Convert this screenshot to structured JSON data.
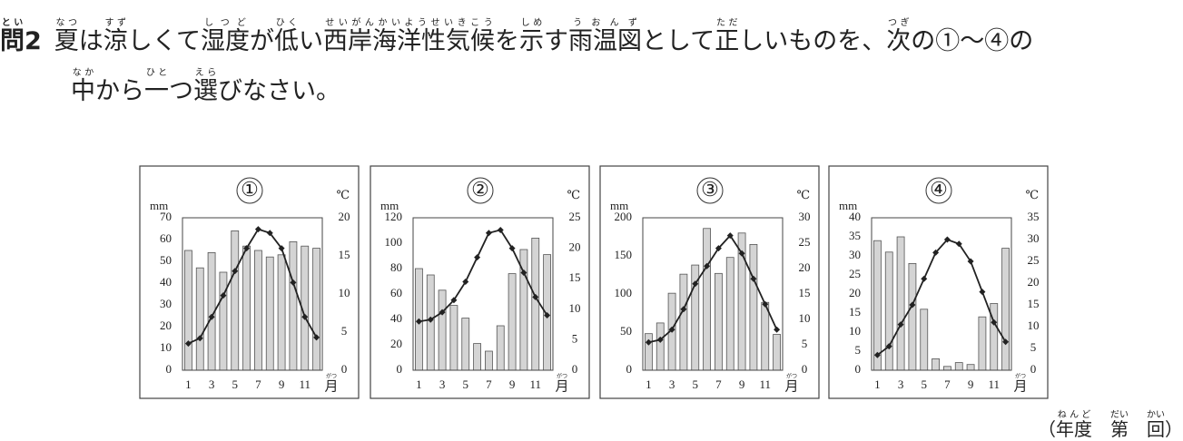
{
  "question": {
    "label": [
      {
        "text": "問",
        "ruby": "とい"
      },
      {
        "text": "2"
      }
    ],
    "lines": [
      [
        {
          "text": "夏",
          "ruby": "なつ"
        },
        {
          "text": "は"
        },
        {
          "text": "涼",
          "ruby": "すず"
        },
        {
          "text": "しくて"
        },
        {
          "text": "湿度",
          "ruby": "しつど"
        },
        {
          "text": "が"
        },
        {
          "text": "低",
          "ruby": "ひく"
        },
        {
          "text": "い"
        },
        {
          "text": "西岸海洋性気候",
          "ruby": "せいがんかいようせいきこう"
        },
        {
          "text": "を"
        },
        {
          "text": "示",
          "ruby": "しめ"
        },
        {
          "text": "す"
        },
        {
          "text": "雨温図",
          "ruby": "うおんず"
        },
        {
          "text": "として"
        },
        {
          "text": "正",
          "ruby": "ただ"
        },
        {
          "text": "しいものを、"
        },
        {
          "text": "次",
          "ruby": "つぎ"
        },
        {
          "text": "の①～④の"
        }
      ],
      [
        {
          "text": "中",
          "ruby": "なか"
        },
        {
          "text": "から"
        },
        {
          "text": "一",
          "ruby": "ひと"
        },
        {
          "text": "つ"
        },
        {
          "text": "選",
          "ruby": "えら"
        },
        {
          "text": "びなさい。"
        }
      ]
    ]
  },
  "source": [
    {
      "text": "（"
    },
    {
      "text": "年度",
      "ruby": "ねんど"
    },
    {
      "text": "　"
    },
    {
      "text": "第",
      "ruby": "だい"
    },
    {
      "text": "　"
    },
    {
      "text": "回",
      "ruby": "かい"
    },
    {
      "text": "）"
    }
  ],
  "chart_data": [
    {
      "type": "bar-line",
      "title": "①",
      "ylabel": "mm",
      "y2label": "℃",
      "xlabel": "月",
      "xlabel_ruby": "がつ",
      "categories": [
        1,
        null,
        3,
        null,
        5,
        null,
        7,
        null,
        9,
        null,
        11,
        null
      ],
      "ylim": [
        0,
        70
      ],
      "yticks": [
        0,
        10,
        20,
        30,
        40,
        50,
        60,
        70
      ],
      "y2lim": [
        0,
        20
      ],
      "y2ticks": [
        0,
        5,
        10,
        15,
        20
      ],
      "series": [
        {
          "type": "bar",
          "color": "#d4d4d4",
          "values": [
            55,
            47,
            54,
            45,
            64,
            57,
            55,
            52,
            53,
            59,
            57,
            56
          ]
        },
        {
          "type": "line",
          "axis": "y2",
          "color": "#222222",
          "values": [
            3.5,
            4.2,
            7,
            9.8,
            13,
            16,
            18.5,
            18,
            16,
            11.5,
            7,
            4.3
          ]
        }
      ]
    },
    {
      "type": "bar-line",
      "title": "②",
      "ylabel": "mm",
      "y2label": "℃",
      "xlabel": "月",
      "xlabel_ruby": "がつ",
      "categories": [
        1,
        null,
        3,
        null,
        5,
        null,
        7,
        null,
        9,
        null,
        11,
        null
      ],
      "ylim": [
        0,
        120
      ],
      "yticks": [
        0,
        20,
        40,
        60,
        80,
        100,
        120
      ],
      "y2lim": [
        0,
        25
      ],
      "y2ticks": [
        0,
        5,
        10,
        15,
        20,
        25
      ],
      "series": [
        {
          "type": "bar",
          "color": "#d4d4d4",
          "values": [
            80,
            75,
            63,
            51,
            41,
            21,
            15,
            35,
            76,
            95,
            104,
            91
          ]
        },
        {
          "type": "line",
          "axis": "y2",
          "color": "#222222",
          "values": [
            8,
            8.3,
            9.5,
            11.5,
            14.5,
            18.5,
            22.5,
            23,
            20,
            16,
            12,
            9
          ]
        }
      ]
    },
    {
      "type": "bar-line",
      "title": "③",
      "ylabel": "mm",
      "y2label": "℃",
      "xlabel": "月",
      "xlabel_ruby": "がつ",
      "categories": [
        1,
        null,
        3,
        null,
        5,
        null,
        7,
        null,
        9,
        null,
        11,
        null
      ],
      "ylim": [
        0,
        200
      ],
      "yticks": [
        0,
        50,
        100,
        150,
        200
      ],
      "y2lim": [
        0,
        30
      ],
      "y2ticks": [
        0,
        5,
        10,
        15,
        20,
        25,
        30
      ],
      "series": [
        {
          "type": "bar",
          "color": "#d4d4d4",
          "values": [
            48,
            62,
            101,
            126,
            138,
            186,
            127,
            148,
            180,
            165,
            89,
            47
          ]
        },
        {
          "type": "line",
          "axis": "y2",
          "color": "#222222",
          "values": [
            5.5,
            6,
            8,
            12,
            17,
            20.5,
            24,
            26.5,
            23,
            18,
            13,
            8
          ]
        }
      ]
    },
    {
      "type": "bar-line",
      "title": "④",
      "ylabel": "mm",
      "y2label": "℃",
      "xlabel": "月",
      "xlabel_ruby": "がつ",
      "categories": [
        1,
        null,
        3,
        null,
        5,
        null,
        7,
        null,
        9,
        null,
        11,
        null
      ],
      "ylim": [
        0,
        40
      ],
      "yticks": [
        0,
        5,
        10,
        15,
        20,
        25,
        30,
        35,
        40
      ],
      "y2lim": [
        0,
        35
      ],
      "y2ticks": [
        0,
        5,
        10,
        15,
        20,
        25,
        30,
        35
      ],
      "series": [
        {
          "type": "bar",
          "color": "#d4d4d4",
          "values": [
            34,
            31,
            35,
            28,
            16,
            3,
            1,
            2,
            1.5,
            14,
            17.5,
            32
          ]
        },
        {
          "type": "line",
          "axis": "y2",
          "color": "#222222",
          "values": [
            3.5,
            5.5,
            10.5,
            15,
            21,
            27,
            30,
            29,
            25,
            18,
            11,
            6.5
          ]
        }
      ]
    }
  ]
}
